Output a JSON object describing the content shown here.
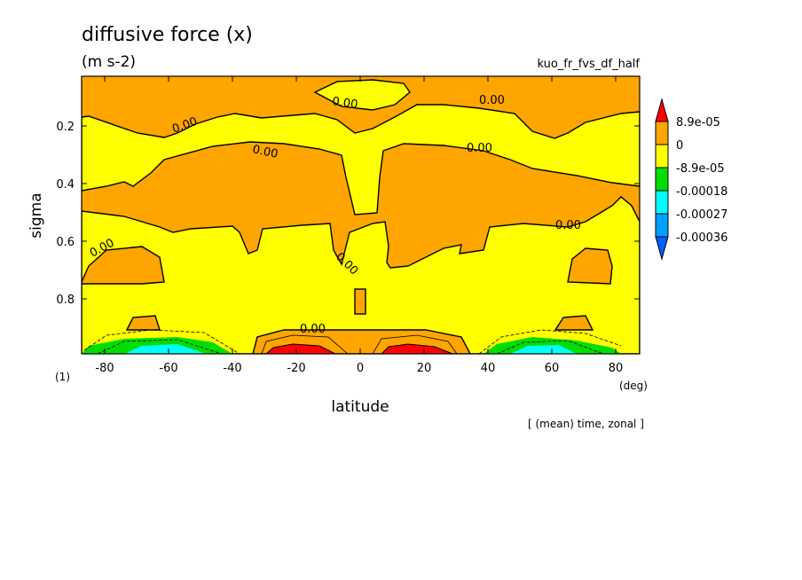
{
  "chart_data": {
    "type": "heatmap",
    "subtype": "filled-contour",
    "title": "diffusive force (x)",
    "units": "(m s-2)",
    "run_label": "kuo_fr_fvs_df_half",
    "xlabel": "latitude",
    "x_unit": "(deg)",
    "ylabel": "sigma",
    "panel_label": "(1)",
    "footer": "[ (mean) time, zonal ]",
    "xlim": [
      -87,
      87
    ],
    "ylim": [
      0.02,
      0.99
    ],
    "y_reversed": true,
    "x_ticks": [
      "-80",
      "-60",
      "-40",
      "-20",
      "0",
      "20",
      "40",
      "60",
      "80"
    ],
    "y_ticks": [
      "0.2",
      "0.4",
      "0.6",
      "0.8"
    ],
    "contour_label": "0.00",
    "contour_labels_x": [
      -9,
      41,
      -62,
      -33,
      41,
      -9,
      71,
      -91,
      4
    ],
    "colorbar": {
      "levels": [
        "8.9e-05",
        "0",
        "-8.9e-05",
        "-0.00018",
        "-0.00027",
        "-0.00036"
      ],
      "colors": [
        "#ff0000",
        "#ffa500",
        "#ffff00",
        "#00dd00",
        "#00ffff",
        "#00a0ff",
        "#0060ff"
      ]
    }
  }
}
